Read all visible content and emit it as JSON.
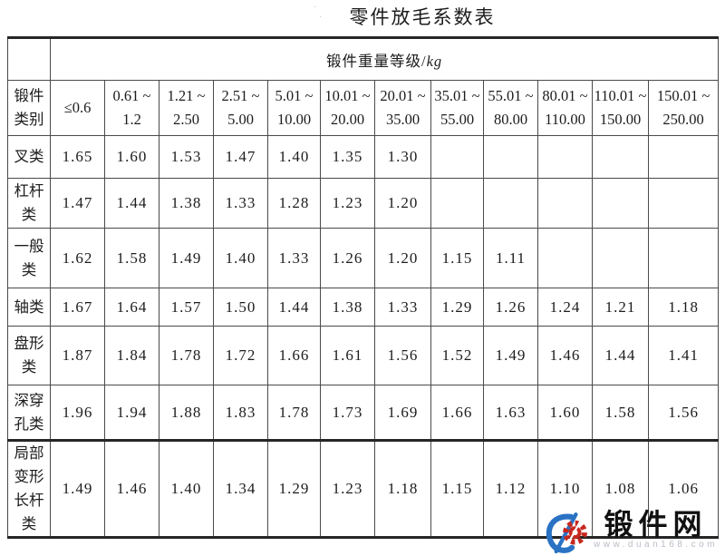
{
  "title": "零件放毛系数表",
  "table": {
    "weight_header": "锻件重量等级/",
    "weight_header_unit": "kg",
    "category_header_lines": [
      "锻件",
      "类别"
    ],
    "weight_classes": [
      [
        "≤0.6"
      ],
      [
        "0.61 ~",
        "1.2"
      ],
      [
        "1.21 ~",
        "2.50"
      ],
      [
        "2.51 ~",
        "5.00"
      ],
      [
        "5.01 ~",
        "10.00"
      ],
      [
        "10.01 ~",
        "20.00"
      ],
      [
        "20.01 ~",
        "35.00"
      ],
      [
        "35.01 ~",
        "55.00"
      ],
      [
        "55.01 ~",
        "80.00"
      ],
      [
        "80.01 ~",
        "110.00"
      ],
      [
        "110.01 ~",
        "150.00"
      ],
      [
        "150.01 ~",
        "250.00"
      ]
    ],
    "rows": [
      {
        "category_lines": [
          "叉类"
        ],
        "values": [
          "1.65",
          "1.60",
          "1.53",
          "1.47",
          "1.40",
          "1.35",
          "1.30",
          "",
          "",
          "",
          "",
          ""
        ]
      },
      {
        "category_lines": [
          "杠杆",
          "类"
        ],
        "values": [
          "1.47",
          "1.44",
          "1.38",
          "1.33",
          "1.28",
          "1.23",
          "1.20",
          "",
          "",
          "",
          "",
          ""
        ]
      },
      {
        "category_lines": [
          "一般",
          "类"
        ],
        "values": [
          "1.62",
          "1.58",
          "1.49",
          "1.40",
          "1.33",
          "1.26",
          "1.20",
          "1.15",
          "1.11",
          "",
          "",
          ""
        ]
      },
      {
        "category_lines": [
          "轴类"
        ],
        "values": [
          "1.67",
          "1.64",
          "1.57",
          "1.50",
          "1.44",
          "1.38",
          "1.33",
          "1.29",
          "1.26",
          "1.24",
          "1.21",
          "1.18"
        ]
      },
      {
        "category_lines": [
          "盘形",
          "类"
        ],
        "values": [
          "1.87",
          "1.84",
          "1.78",
          "1.72",
          "1.66",
          "1.61",
          "1.56",
          "1.52",
          "1.49",
          "1.46",
          "1.44",
          "1.41"
        ]
      },
      {
        "category_lines": [
          "深穿",
          "孔类"
        ],
        "values": [
          "1.96",
          "1.94",
          "1.88",
          "1.83",
          "1.78",
          "1.73",
          "1.69",
          "1.66",
          "1.63",
          "1.60",
          "1.58",
          "1.56"
        ]
      },
      {
        "category_lines": [
          "局部",
          "变形",
          "长杆",
          "类"
        ],
        "values": [
          "1.49",
          "1.46",
          "1.40",
          "1.34",
          "1.29",
          "1.23",
          "1.18",
          "1.15",
          "1.12",
          "1.10",
          "1.08",
          "1.06"
        ]
      }
    ]
  },
  "watermark": {
    "site_name": "锻件网",
    "site_url": "www.duan168.com"
  },
  "colors": {
    "logo_blue": "#2a72c4",
    "logo_red": "#c8271e",
    "border_dark": "#262626",
    "border_light": "#4a4a4a",
    "url_gray": "#b7bec6"
  }
}
